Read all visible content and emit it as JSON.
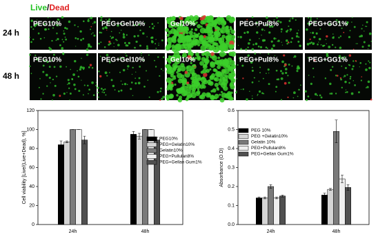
{
  "panel": {
    "legend_live": "Live",
    "legend_sep": "/",
    "legend_dead": "Dead",
    "rows": [
      "24 h",
      "48 h"
    ],
    "columns": [
      "PEG10%",
      "PEG+Gel10%",
      "Gel10%",
      "PEG+Pul8%",
      "PEG+GG1%"
    ]
  },
  "chart_data": [
    {
      "type": "bar",
      "y_label": "Cell viability [Live/(Live+Dead), %]",
      "categories": [
        "24h",
        "48h"
      ],
      "ylim": [
        0,
        120
      ],
      "yticks": [
        0,
        20,
        40,
        60,
        80,
        100,
        120
      ],
      "series": [
        {
          "name": "PEG10%",
          "color": "#000000",
          "values": [
            84,
            95
          ],
          "errors": [
            4,
            3
          ]
        },
        {
          "name": "PEG+Gelatin10%",
          "color": "#d4d4d4",
          "values": [
            87,
            93
          ],
          "errors": [
            1,
            3
          ]
        },
        {
          "name": "Gelatin10%",
          "color": "#7a7a7a",
          "values": [
            100,
            100
          ],
          "errors": [
            0,
            0
          ]
        },
        {
          "name": "PEG+Pullulan8%",
          "color": "#efefef",
          "values": [
            100,
            100
          ],
          "errors": [
            0,
            0
          ]
        },
        {
          "name": "PEG+Gellan Gum1%",
          "color": "#505050",
          "values": [
            89,
            89
          ],
          "errors": [
            4,
            3
          ]
        }
      ]
    },
    {
      "type": "bar",
      "y_label": "Absorbance (O.D)",
      "categories": [
        "24h",
        "48h"
      ],
      "ylim": [
        0,
        0.6
      ],
      "yticks": [
        {
          "value": 0,
          "label": "0.0"
        },
        0.1,
        0.2,
        0.3,
        0.4,
        0.5,
        0.6
      ],
      "series": [
        {
          "name": "PEG 10%",
          "color": "#000000",
          "values": [
            0.14,
            0.155
          ],
          "errors": [
            0.005,
            0.01
          ]
        },
        {
          "name": "PEG +Gelatin10%",
          "color": "#d4d4d4",
          "values": [
            0.14,
            0.185
          ],
          "errors": [
            0.005,
            0.005
          ]
        },
        {
          "name": "Gelatin 10%",
          "color": "#7a7a7a",
          "values": [
            0.2,
            0.49
          ],
          "errors": [
            0.01,
            0.06
          ]
        },
        {
          "name": "PEG+Pullulan8%",
          "color": "#efefef",
          "values": [
            0.14,
            0.24
          ],
          "errors": [
            0.005,
            0.02
          ]
        },
        {
          "name": "PEG+Gellan Gum1%",
          "color": "#505050",
          "values": [
            0.15,
            0.195
          ],
          "errors": [
            0.005,
            0.015
          ]
        }
      ]
    }
  ]
}
